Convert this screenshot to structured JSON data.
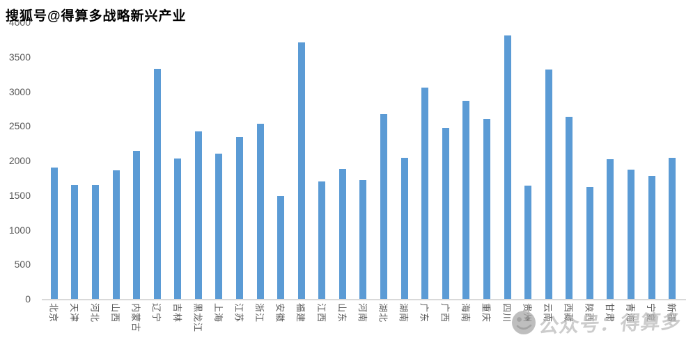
{
  "watermarks": {
    "top_left": "搜狐号@得算多战略新兴产业",
    "bottom_right": {
      "icon": "smiley-logo-icon",
      "text": "公众号：得算多"
    }
  },
  "colors": {
    "bar": "#5B9BD5",
    "axis_label": "#595959",
    "baseline": "#D9D9D9",
    "watermark_top": "#000000",
    "watermark_bottom": "#b9b9b9",
    "background": "#ffffff"
  },
  "chart_data": {
    "type": "bar",
    "title": "",
    "xlabel": "",
    "ylabel": "",
    "categories": [
      "北京",
      "天津",
      "河北",
      "山西",
      "内蒙古",
      "辽宁",
      "吉林",
      "黑龙江",
      "上海",
      "江苏",
      "浙江",
      "安徽",
      "福建",
      "江西",
      "山东",
      "河南",
      "湖北",
      "湖南",
      "广东",
      "广西",
      "海南",
      "重庆",
      "四川",
      "贵州",
      "云南",
      "西藏",
      "陕西",
      "甘肃",
      "青海",
      "宁夏",
      "新疆"
    ],
    "values": [
      1900,
      1650,
      1650,
      1860,
      2140,
      3330,
      2030,
      2420,
      2100,
      2340,
      2530,
      1490,
      3710,
      1700,
      1880,
      1720,
      2670,
      2040,
      3060,
      2470,
      2860,
      2600,
      3810,
      1640,
      3320,
      2630,
      1620,
      2020,
      1870,
      1780,
      2040
    ],
    "ylim": [
      0,
      4000
    ],
    "yticks": [
      0,
      500,
      1000,
      1500,
      2000,
      2500,
      3000,
      3500,
      4000
    ],
    "grid": false,
    "legend": false,
    "bar_color": "#5B9BD5"
  }
}
